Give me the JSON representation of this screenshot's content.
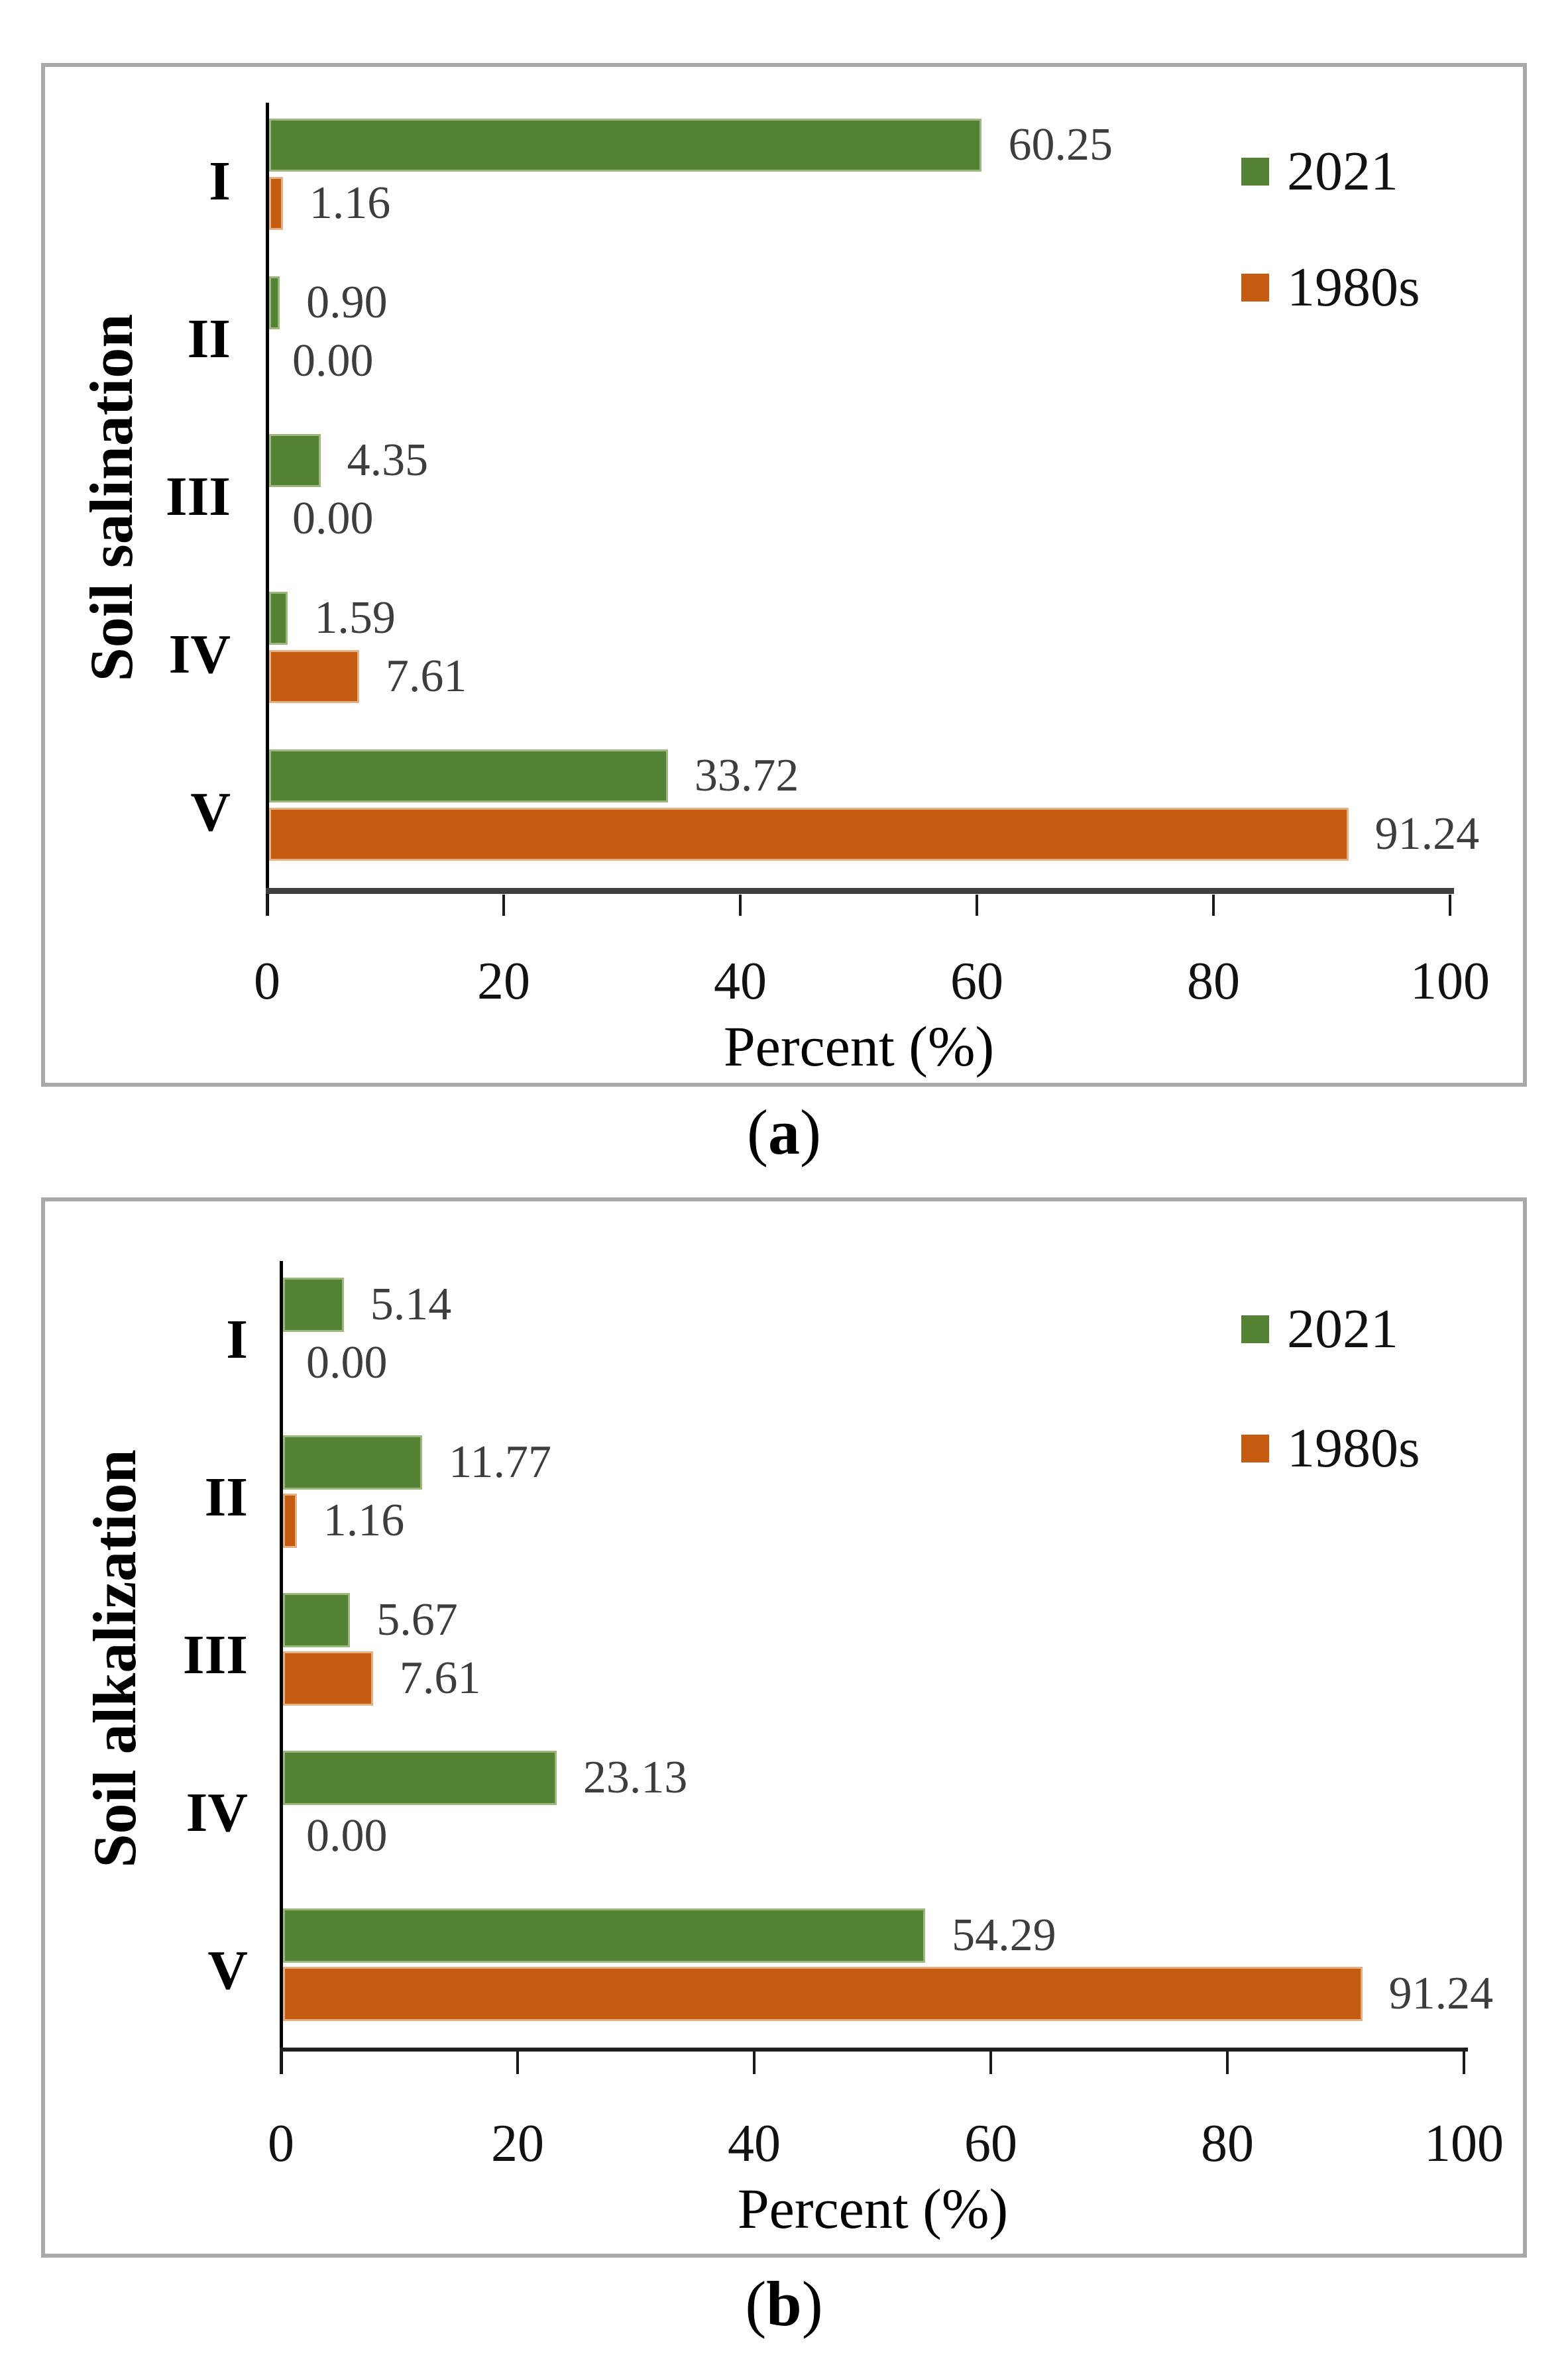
{
  "figure": {
    "captions": [
      {
        "open": "(",
        "letter": "a",
        "close": ")"
      },
      {
        "open": "(",
        "letter": "b",
        "close": ")"
      }
    ]
  },
  "colors": {
    "series_2021": "#548235",
    "series_2021_edge": "#9db77f",
    "series_1980s": "#C55A11",
    "series_1980s_edge": "#e2b186",
    "panel_border": "#a9a9a9",
    "value_label": "#3d3d3d",
    "x_axis_line_a": "#3f3f3f",
    "x_axis_line_b": "#1f1f1f",
    "y_axis_line": "#000000"
  },
  "chart_data": [
    {
      "id": "a",
      "type": "bar",
      "orientation": "horizontal",
      "ylabel": "Soil salination",
      "xlabel": "Percent (%)",
      "categories": [
        "I",
        "II",
        "III",
        "IV",
        "V"
      ],
      "series": [
        {
          "name": "2021",
          "color": "#548235",
          "edge": "#9db77f",
          "values": [
            60.25,
            0.9,
            4.35,
            1.59,
            33.72
          ]
        },
        {
          "name": "1980s",
          "color": "#C55A11",
          "edge": "#e2b186",
          "values": [
            1.16,
            0.0,
            0.0,
            7.61,
            91.24
          ]
        }
      ],
      "value_labels": [
        [
          "60.25",
          "0.90",
          "4.35",
          "1.59",
          "33.72"
        ],
        [
          "1.16",
          "0.00",
          "0.00",
          "7.61",
          "91.24"
        ]
      ],
      "xlim": [
        0,
        100
      ],
      "x_ticks": [
        "0",
        "20",
        "40",
        "60",
        "80",
        "100"
      ],
      "legend_position": "top-right",
      "legend_entries": [
        "2021",
        "1980s"
      ],
      "grid": false
    },
    {
      "id": "b",
      "type": "bar",
      "orientation": "horizontal",
      "ylabel": "Soil alkalization",
      "xlabel": "Percent (%)",
      "categories": [
        "I",
        "II",
        "III",
        "IV",
        "V"
      ],
      "series": [
        {
          "name": "2021",
          "color": "#548235",
          "edge": "#9db77f",
          "values": [
            5.14,
            11.77,
            5.67,
            23.13,
            54.29
          ]
        },
        {
          "name": "1980s",
          "color": "#C55A11",
          "edge": "#e2b186",
          "values": [
            0.0,
            1.16,
            7.61,
            0.0,
            91.24
          ]
        }
      ],
      "value_labels": [
        [
          "5.14",
          "11.77",
          "5.67",
          "23.13",
          "54.29"
        ],
        [
          "0.00",
          "1.16",
          "7.61",
          "0.00",
          "91.24"
        ]
      ],
      "xlim": [
        0,
        100
      ],
      "x_ticks": [
        "0",
        "20",
        "40",
        "60",
        "80",
        "100"
      ],
      "legend_position": "top-right",
      "legend_entries": [
        "2021",
        "1980s"
      ],
      "grid": false
    }
  ]
}
